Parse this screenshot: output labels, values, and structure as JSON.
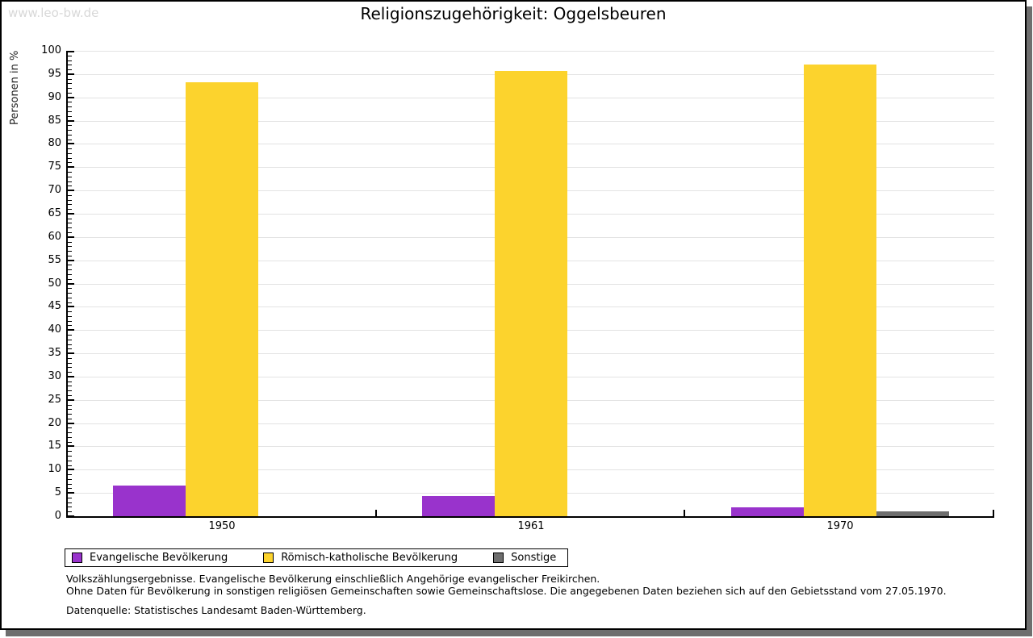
{
  "watermark": "www.leo-bw.de",
  "title": "Religionszugehörigkeit: Oggelsbeuren",
  "chart_data": {
    "type": "bar",
    "title": "Religionszugehörigkeit: Oggelsbeuren",
    "categories": [
      "1950",
      "1961",
      "1970"
    ],
    "series": [
      {
        "name": "Evangelische Bevölkerung",
        "color": "#9933cc",
        "values": [
          6.6,
          4.3,
          1.9
        ]
      },
      {
        "name": "Römisch-katholische Bevölkerung",
        "color": "#fcd32d",
        "values": [
          93.3,
          95.6,
          97.0
        ]
      },
      {
        "name": "Sonstige",
        "color": "#6e6e6e",
        "values": [
          0,
          0,
          1.0
        ]
      }
    ],
    "xlabel": "",
    "ylabel": "Personen in %",
    "ylim": [
      0,
      100
    ],
    "ytick_step": 5,
    "minor_tick_step": 1,
    "grid": true,
    "gridline_color": "#e3e3e3",
    "legend_position": "bottom"
  },
  "footnotes": {
    "line1": "Volkszählungsergebnisse. Evangelische Bevölkerung einschließlich Angehörige evangelischer Freikirchen.",
    "line2": "Ohne Daten für Bevölkerung in sonstigen religiösen Gemeinschaften sowie Gemeinschaftslose. Die angegebenen Daten beziehen sich auf den Gebietsstand vom 27.05.1970.",
    "source": "Datenquelle: Statistisches Landesamt Baden-Württemberg."
  }
}
